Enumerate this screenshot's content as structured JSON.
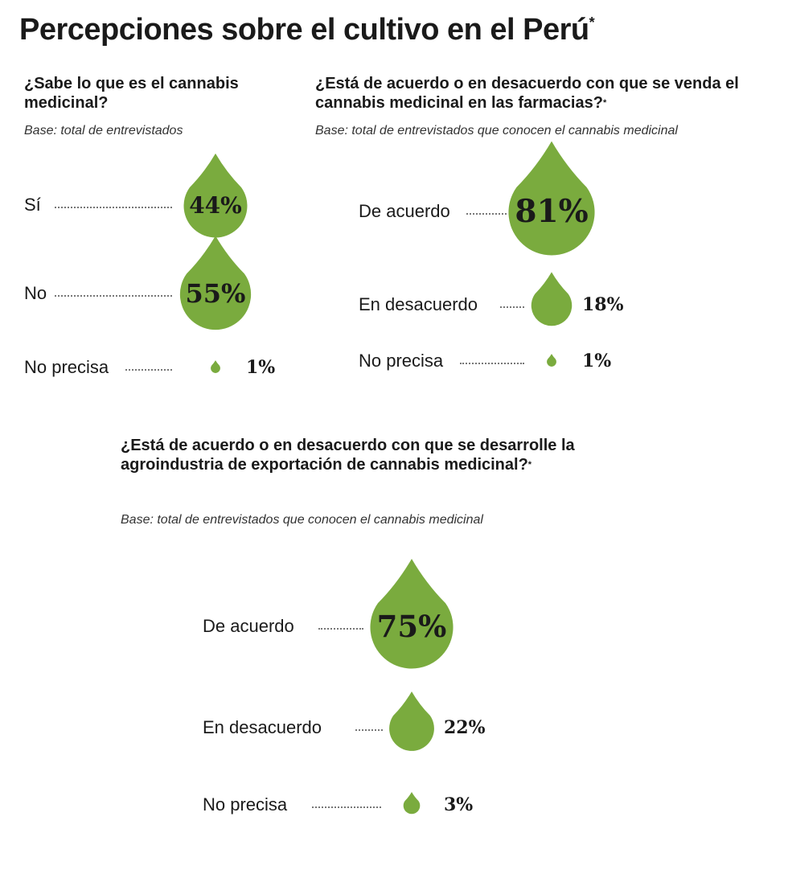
{
  "title": "Percepciones sobre el cultivo en el Perú",
  "title_mark": "*",
  "chart_data": [
    {
      "type": "bar",
      "title": "¿Sabe lo que es el cannabis medicinal?",
      "title_mark": "",
      "subtitle": "Base: total de entrevistados",
      "categories": [
        "Sí",
        "No",
        "No precisa"
      ],
      "values": [
        44,
        55,
        1
      ],
      "value_labels": [
        "44%",
        "55%",
        "1%"
      ],
      "unit": "%",
      "color": "#7aab3e"
    },
    {
      "type": "bar",
      "title": "¿Está de acuerdo o en desacuerdo con que se venda el cannabis medicinal en las farmacias?",
      "title_mark": "*",
      "subtitle": "Base: total de entrevistados que conocen el cannabis medicinal",
      "categories": [
        "De acuerdo",
        "En desacuerdo",
        "No precisa"
      ],
      "values": [
        81,
        18,
        1
      ],
      "value_labels": [
        "81%",
        "18%",
        "1%"
      ],
      "unit": "%",
      "color": "#7aab3e"
    },
    {
      "type": "bar",
      "title": "¿Está de acuerdo o en desacuerdo con que se desarrolle la agroindustria de exportación de cannabis medicinal?",
      "title_mark": "*",
      "subtitle": "Base: total de entrevistados que conocen el cannabis medicinal",
      "categories": [
        "De acuerdo",
        "En desacuerdo",
        "No precisa"
      ],
      "values": [
        75,
        22,
        3
      ],
      "value_labels": [
        "75%",
        "22%",
        "3%"
      ],
      "unit": "%",
      "color": "#7aab3e"
    }
  ]
}
